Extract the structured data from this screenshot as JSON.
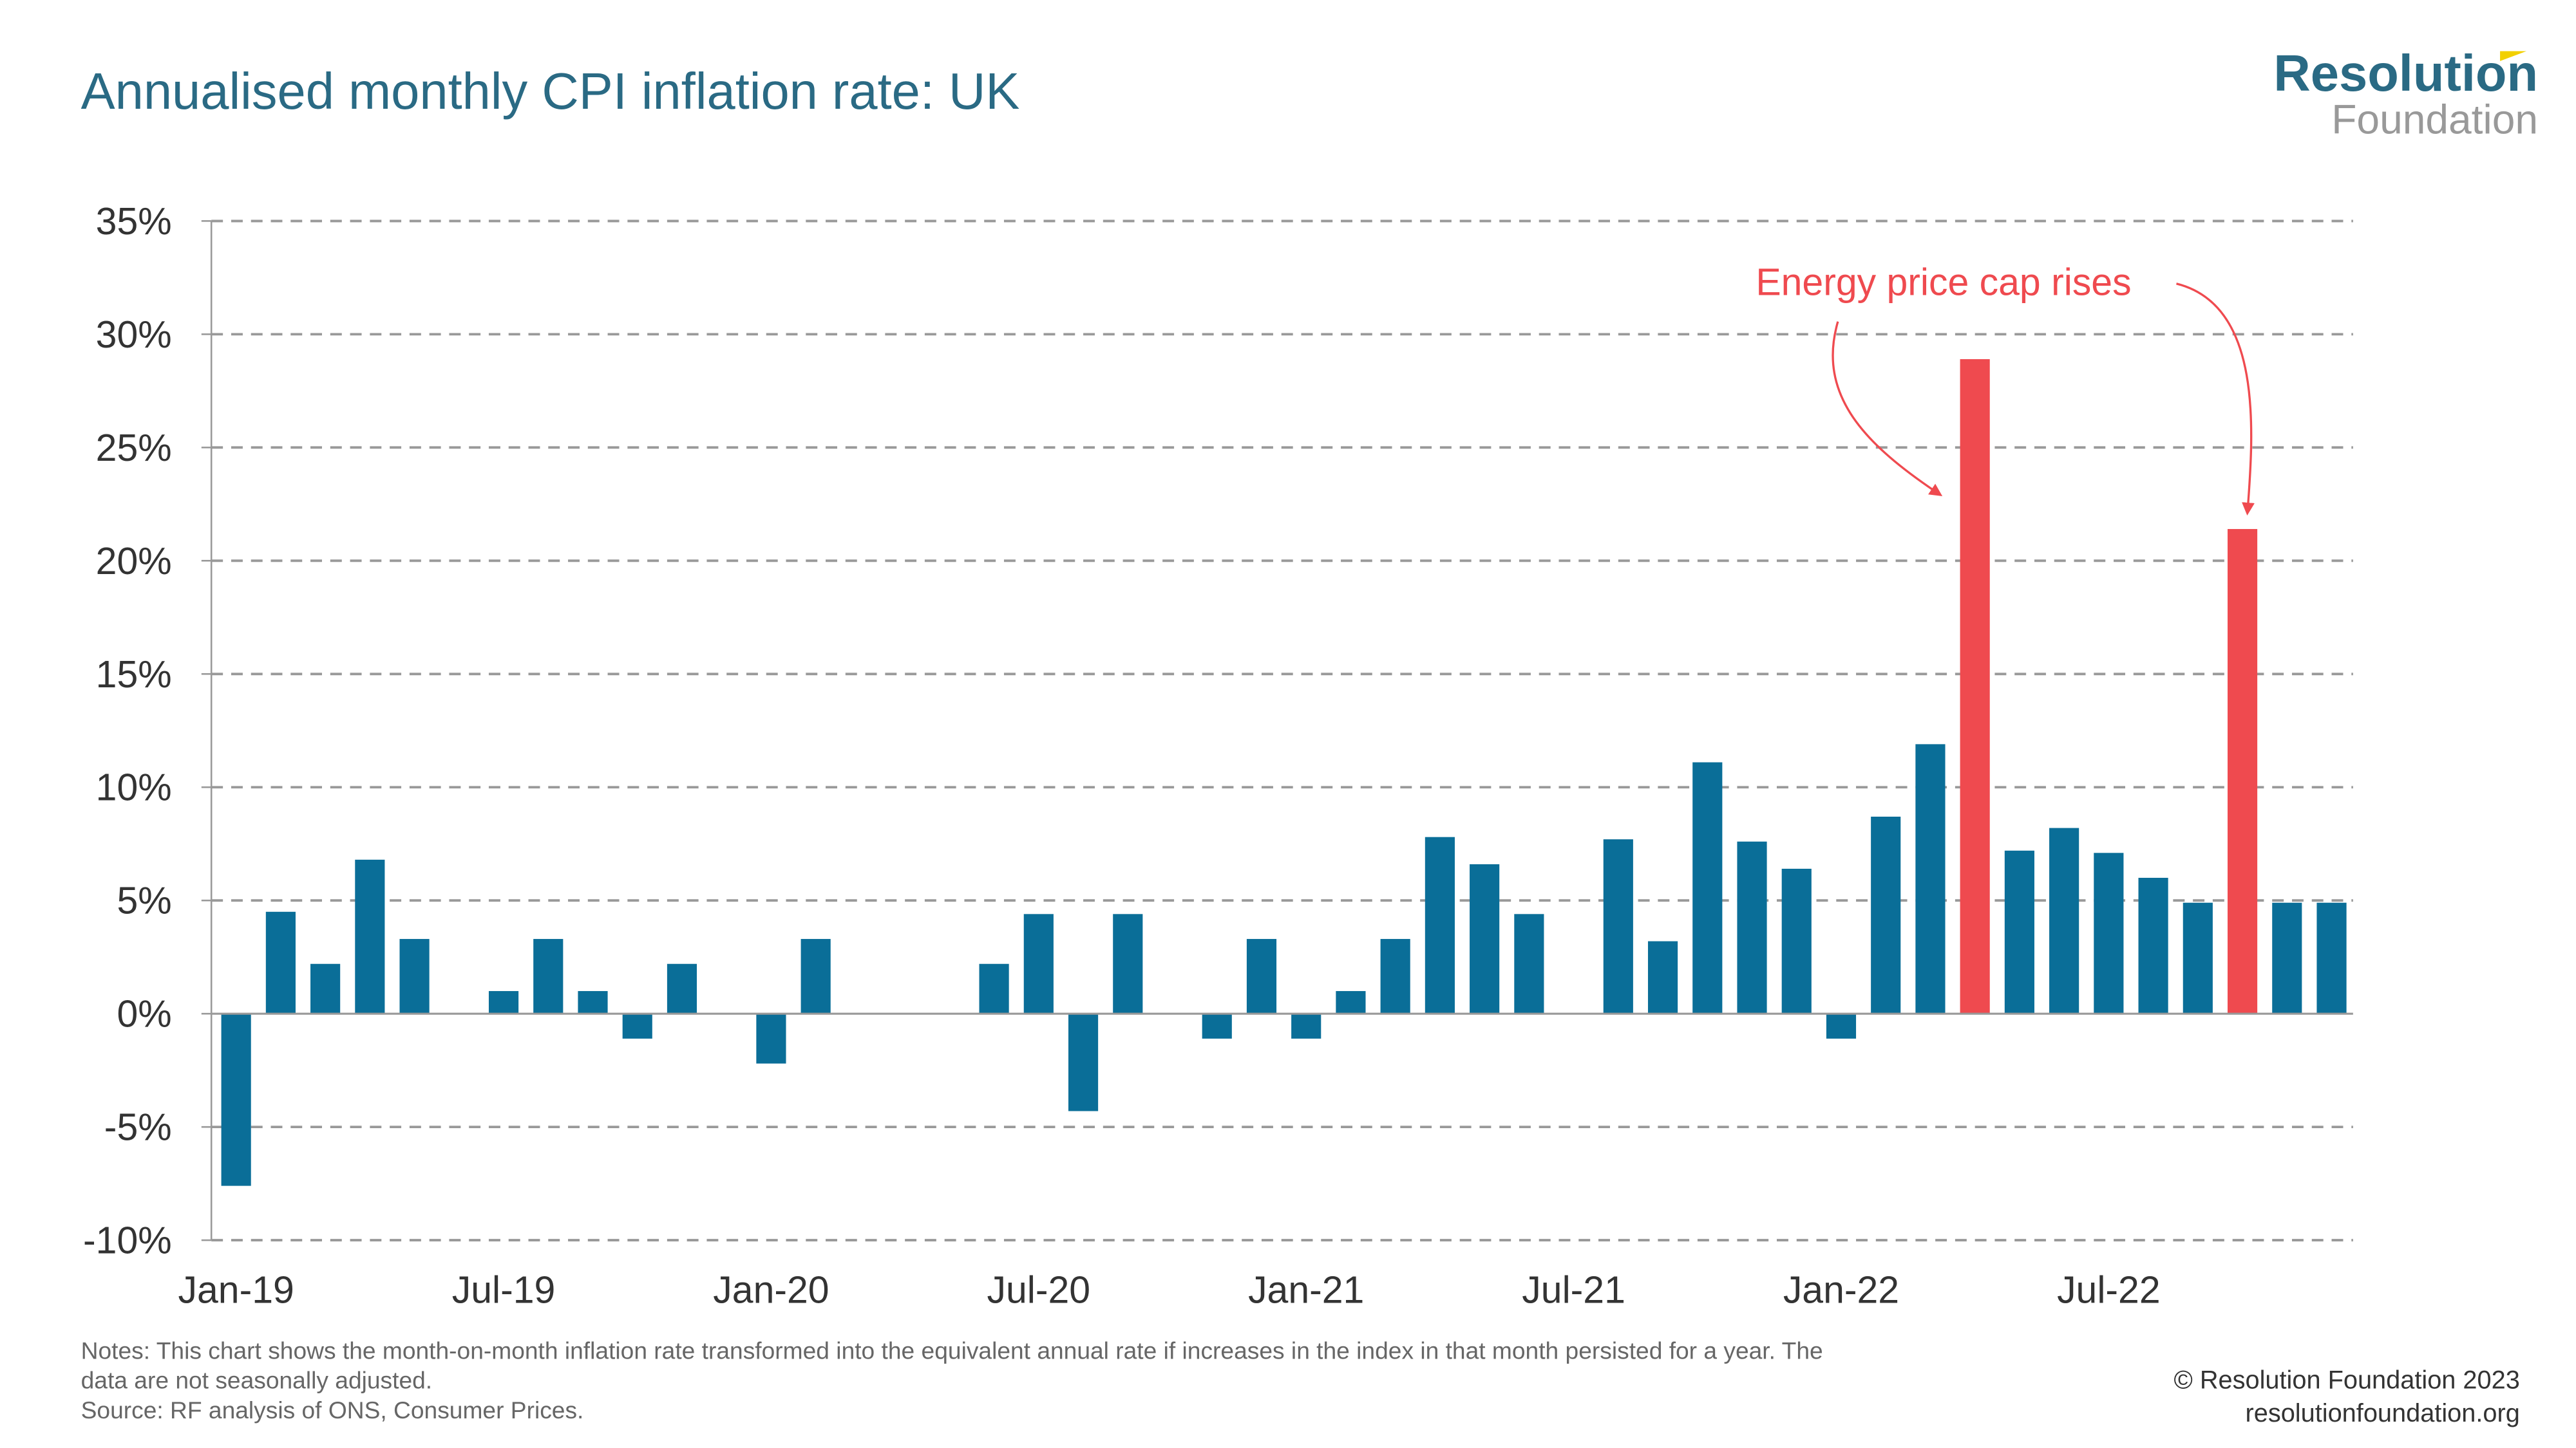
{
  "header": {
    "title": "Annualised monthly CPI inflation rate: UK",
    "logo_line1": "Resolution",
    "logo_line2": "Foundation"
  },
  "footer": {
    "notes_line1": "Notes: This chart shows the month-on-month inflation rate transformed into the equivalent annual rate if increases in the index in that month persisted for a year. The",
    "notes_line2": "data are not seasonally adjusted.",
    "source": "Source: RF analysis of ONS, Consumer Prices.",
    "copyright": "© Resolution Foundation 2023",
    "website": "resolutionfoundation.org"
  },
  "colors": {
    "bar": "#0a6e98",
    "highlight": "#ef4a4f",
    "title": "#2a6a84",
    "grid": "#999999"
  },
  "chart_data": {
    "type": "bar",
    "title": "Annualised monthly CPI inflation rate: UK",
    "xlabel": "",
    "ylabel": "",
    "ylim": [
      -10,
      35
    ],
    "yticks": [
      35,
      30,
      25,
      20,
      15,
      10,
      5,
      0,
      -5,
      -10
    ],
    "ytick_labels": [
      "35%",
      "30%",
      "25%",
      "20%",
      "15%",
      "10%",
      "5%",
      "0%",
      "-5%",
      "-10%"
    ],
    "grid": true,
    "xtick_labels": [
      {
        "index": 0,
        "label": "Jan-19"
      },
      {
        "index": 6,
        "label": "Jul-19"
      },
      {
        "index": 12,
        "label": "Jan-20"
      },
      {
        "index": 18,
        "label": "Jul-20"
      },
      {
        "index": 24,
        "label": "Jan-21"
      },
      {
        "index": 30,
        "label": "Jul-21"
      },
      {
        "index": 36,
        "label": "Jan-22"
      },
      {
        "index": 42,
        "label": "Jul-22"
      }
    ],
    "categories": [
      "Jan-19",
      "Feb-19",
      "Mar-19",
      "Apr-19",
      "May-19",
      "Jun-19",
      "Jul-19",
      "Aug-19",
      "Sep-19",
      "Oct-19",
      "Nov-19",
      "Dec-19",
      "Jan-20",
      "Feb-20",
      "Mar-20",
      "Apr-20",
      "May-20",
      "Jun-20",
      "Jul-20",
      "Aug-20",
      "Sep-20",
      "Oct-20",
      "Nov-20",
      "Dec-20",
      "Jan-21",
      "Feb-21",
      "Mar-21",
      "Apr-21",
      "May-21",
      "Jun-21",
      "Jul-21",
      "Aug-21",
      "Sep-21",
      "Oct-21",
      "Nov-21",
      "Dec-21",
      "Jan-22",
      "Feb-22",
      "Mar-22",
      "Apr-22",
      "May-22",
      "Jun-22",
      "Jul-22",
      "Aug-22",
      "Sep-22",
      "Oct-22",
      "Nov-22",
      "Dec-22"
    ],
    "values": [
      -7.6,
      4.5,
      2.2,
      6.8,
      3.3,
      0,
      1.0,
      3.3,
      1.0,
      -1.1,
      2.2,
      0,
      -2.2,
      3.3,
      0,
      0,
      0,
      2.2,
      4.4,
      -4.3,
      4.4,
      0,
      -1.1,
      3.3,
      -1.1,
      1.0,
      3.3,
      7.8,
      6.6,
      4.4,
      0,
      7.7,
      3.2,
      11.1,
      7.6,
      6.4,
      -1.1,
      8.7,
      11.9,
      28.9,
      7.2,
      8.2,
      7.1,
      6.0,
      4.9,
      21.4,
      4.9,
      4.9
    ],
    "highlighted": [
      "Apr-22",
      "Oct-22"
    ],
    "annotation": {
      "text": "Energy price cap rises",
      "targets": [
        "Apr-22",
        "Oct-22"
      ]
    }
  }
}
